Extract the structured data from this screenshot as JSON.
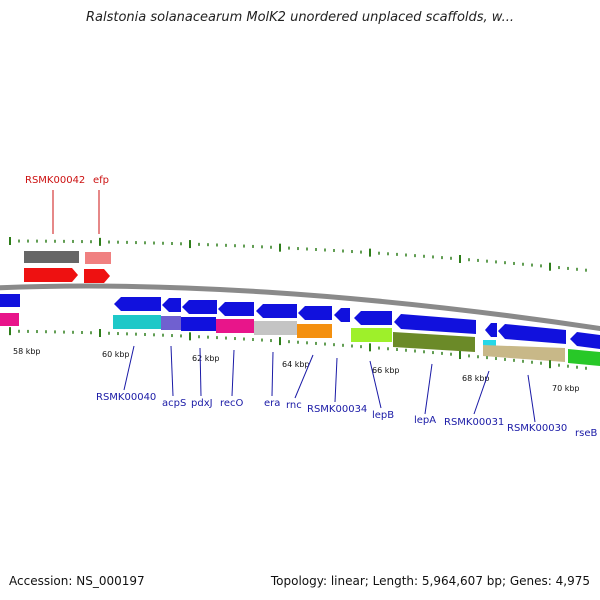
{
  "title": "Ralstonia solanacearum MolK2 unordered unplaced scaffolds, w...",
  "footer": {
    "accession": "Accession: NS_000197",
    "stats": "Topology: linear; Length: 5,964,607 bp; Genes: 4,975"
  },
  "colors": {
    "backbone": "#8a8a8a",
    "tick": "#2e7d1a",
    "tick_label": "#111111",
    "gene_label_reverse": "#1a1aa6",
    "gene_label_forward": "#cc1111",
    "gene_arrow": "#1111dd",
    "forward_arrow": "#ee1111"
  },
  "tick_labels": [
    "58 kbp",
    "60 kbp",
    "62 kbp",
    "64 kbp",
    "66 kbp",
    "68 kbp",
    "70 kbp"
  ],
  "forward_gene_labels": [
    "RSMK00042",
    "efp"
  ],
  "reverse_gene_labels": [
    "RSMK00040",
    "acpS",
    "pdxJ",
    "recO",
    "era",
    "rnc",
    "RSMK00034",
    "lepB",
    "lepA",
    "RSMK00031",
    "RSMK00030",
    "rseB"
  ]
}
